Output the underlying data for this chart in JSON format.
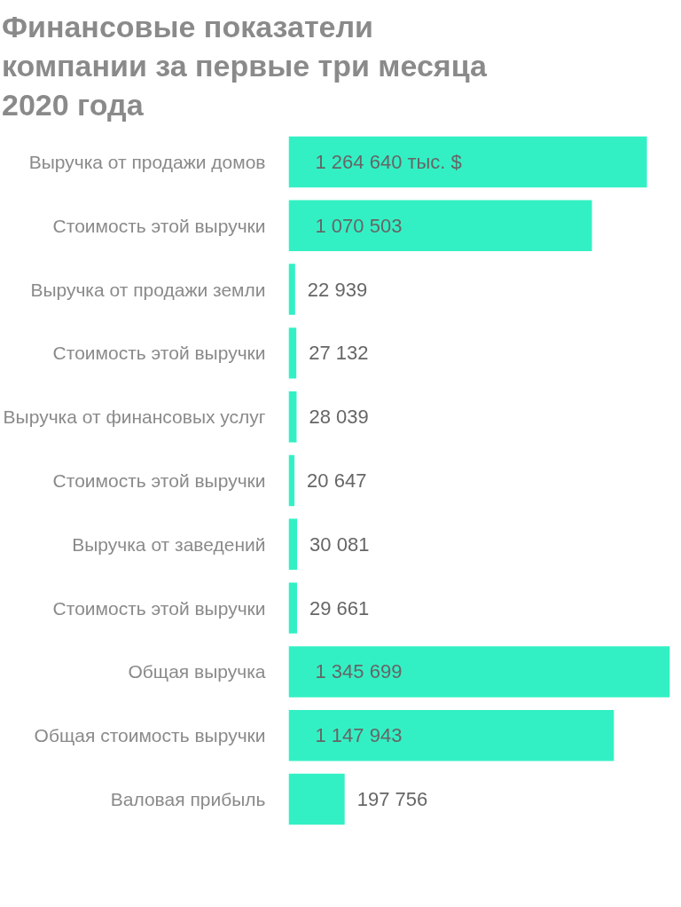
{
  "chart_data": {
    "type": "bar",
    "orientation": "horizontal",
    "title": "Финансовые показатели\nкомпании за первые три месяца\n2020 года",
    "categories": [
      "Выручка от продажи домов",
      "Стоимость этой выручки",
      "Выручка от продажи земли",
      "Стоимость этой выручки",
      "Выручка от финансовых услуг",
      "Стоимость этой выручки",
      "Выручка от заведений",
      "Стоимость этой выручки",
      "Общая выручка",
      "Общая стоимость выручки",
      "Валовая прибыль"
    ],
    "values": [
      1264640,
      1070503,
      22939,
      27132,
      28039,
      20647,
      30081,
      29661,
      1345699,
      1147943,
      197756
    ],
    "value_labels": [
      "1 264 640 тыс. $",
      "1 070 503",
      "22 939",
      "27 132",
      "28 039",
      "20 647",
      "30 081",
      "29 661",
      "1 345 699",
      "1 147 943",
      "197 756"
    ],
    "color": "#33f0c4",
    "grid": false,
    "tick_labels": "y"
  }
}
